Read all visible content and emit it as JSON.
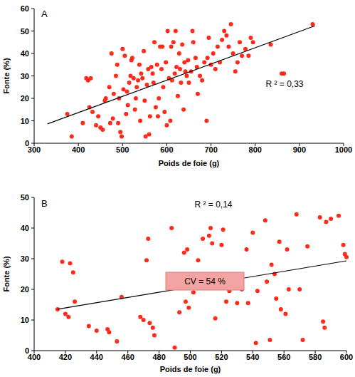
{
  "chart_data": [
    {
      "type": "scatter",
      "title": "A",
      "x_label": "Poids de foie (g)",
      "y_label": "Fonte (%)",
      "xlim": [
        300,
        1000
      ],
      "xticks": [
        300,
        400,
        500,
        600,
        700,
        800,
        900,
        1000
      ],
      "ylim": [
        0,
        60
      ],
      "yticks": [
        0,
        10,
        20,
        30,
        40,
        50,
        60
      ],
      "grid": false,
      "annotations": [
        "R ² = 0,33"
      ],
      "series": [
        {
          "type": "scatter",
          "color": "#ff2a1a",
          "marker": "circle",
          "x": [
            375,
            385,
            410,
            418,
            422,
            425,
            428,
            432,
            440,
            445,
            450,
            455,
            460,
            462,
            470,
            472,
            475,
            478,
            480,
            485,
            488,
            490,
            492,
            495,
            498,
            500,
            502,
            505,
            508,
            510,
            512,
            515,
            518,
            520,
            522,
            525,
            528,
            530,
            532,
            535,
            538,
            540,
            542,
            545,
            548,
            550,
            552,
            555,
            558,
            560,
            562,
            565,
            568,
            570,
            572,
            575,
            578,
            580,
            582,
            585,
            588,
            590,
            592,
            595,
            598,
            600,
            602,
            605,
            608,
            610,
            612,
            615,
            618,
            620,
            622,
            625,
            628,
            630,
            632,
            635,
            638,
            640,
            642,
            645,
            648,
            650,
            655,
            658,
            660,
            665,
            668,
            670,
            675,
            680,
            685,
            690,
            692,
            695,
            700,
            705,
            710,
            715,
            720,
            725,
            730,
            735,
            740,
            745,
            750,
            755,
            760,
            765,
            770,
            778,
            785,
            790,
            795,
            835,
            860,
            865,
            930
          ],
          "values": [
            13,
            3,
            9,
            29,
            28,
            16,
            29,
            14,
            8,
            12,
            7,
            6,
            19,
            20,
            25,
            9,
            40,
            11,
            22,
            30,
            35,
            9,
            20,
            5,
            3,
            42,
            24,
            39,
            13,
            23,
            17,
            27,
            30,
            37,
            38,
            29,
            15,
            20,
            25,
            28,
            35,
            10,
            31,
            29,
            41,
            19,
            3,
            26,
            33,
            4,
            12,
            34,
            31,
            27,
            45,
            16,
            35,
            12,
            20,
            43,
            33,
            43,
            25,
            14,
            36,
            8,
            50,
            29,
            10,
            43,
            28,
            45,
            31,
            50,
            34,
            21,
            40,
            33,
            27,
            44,
            15,
            36,
            32,
            30,
            37,
            27,
            32,
            50,
            45,
            38,
            34,
            22,
            30,
            28,
            36,
            10,
            38,
            47,
            35,
            40,
            33,
            43,
            36,
            46,
            50,
            48,
            43,
            53,
            40,
            32,
            36,
            45,
            39,
            42,
            39,
            47,
            45,
            44,
            31,
            31,
            53
          ]
        },
        {
          "type": "line",
          "color": "#000000",
          "line_style": "solid",
          "x": [
            330,
            935
          ],
          "values": [
            8.6,
            52.3
          ]
        }
      ]
    },
    {
      "type": "scatter",
      "title": "B",
      "x_label": "Poids de foie (g)",
      "y_label": "Fonte (%)",
      "xlim": [
        400,
        600
      ],
      "xticks": [
        400,
        420,
        440,
        460,
        480,
        500,
        520,
        540,
        560,
        580,
        600
      ],
      "ylim": [
        0,
        50
      ],
      "yticks": [
        0,
        10,
        20,
        30,
        40,
        50
      ],
      "grid": false,
      "annotations": [
        "R ² = 0,14",
        "CV = 54 %"
      ],
      "series": [
        {
          "type": "scatter",
          "color": "#ff2a1a",
          "marker": "circle",
          "x": [
            415,
            418,
            420,
            422,
            423,
            425,
            426,
            435,
            440,
            447,
            448,
            453,
            456,
            468,
            470,
            472,
            473,
            474,
            476,
            477,
            488,
            490,
            493,
            496,
            497,
            498,
            499,
            502,
            505,
            508,
            510,
            512,
            513,
            514,
            516,
            520,
            521,
            523,
            525,
            530,
            533,
            536,
            537,
            540,
            542,
            543,
            548,
            549,
            551,
            552,
            554,
            555,
            557,
            558,
            561,
            562,
            563,
            568,
            570,
            572,
            575,
            583,
            585,
            586,
            587,
            590,
            595,
            598,
            599,
            600
          ],
          "values": [
            13.5,
            29,
            12,
            11,
            28.5,
            25.5,
            16,
            8,
            6.5,
            7,
            6,
            3,
            17.5,
            11,
            10,
            29.5,
            36.5,
            9,
            7.5,
            5,
            40,
            1,
            12.5,
            32,
            16,
            33,
            14,
            19,
            29.5,
            36.5,
            22,
            37.5,
            40,
            35,
            10.5,
            34.5,
            39.5,
            16,
            19.5,
            15.5,
            20,
            33,
            15.5,
            38.5,
            2.5,
            19.5,
            42.5,
            22.5,
            3.5,
            28,
            25,
            17,
            35.5,
            13.5,
            12,
            33,
            20,
            44.5,
            20,
            3.5,
            34,
            43.5,
            9.5,
            7.5,
            42,
            43,
            44,
            34.5,
            31.5,
            30.5
          ]
        },
        {
          "type": "line",
          "color": "#000000",
          "line_style": "solid",
          "x": [
            415,
            600
          ],
          "values": [
            13.5,
            29.3
          ]
        }
      ]
    }
  ]
}
